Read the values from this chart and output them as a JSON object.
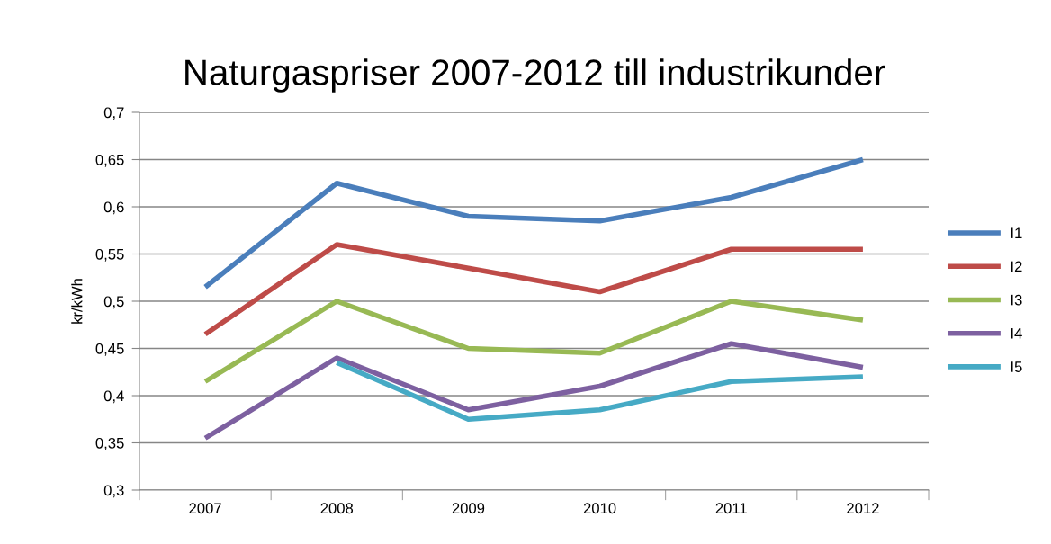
{
  "chart_data": {
    "type": "line",
    "title": "Naturgaspriser 2007-2012 till industrikunder",
    "ylabel": "kr/kWh",
    "categories": [
      "2007",
      "2008",
      "2009",
      "2010",
      "2011",
      "2012"
    ],
    "series": [
      {
        "name": "I1",
        "color": "#4a7ebb",
        "values": [
          0.515,
          0.625,
          0.59,
          0.585,
          0.61,
          0.65
        ]
      },
      {
        "name": "I2",
        "color": "#be4b48",
        "values": [
          0.465,
          0.56,
          0.535,
          0.51,
          0.555,
          0.555
        ]
      },
      {
        "name": "I3",
        "color": "#98b954",
        "values": [
          0.415,
          0.5,
          0.45,
          0.445,
          0.5,
          0.48
        ]
      },
      {
        "name": "I4",
        "color": "#7d60a0",
        "values": [
          0.355,
          0.44,
          0.385,
          0.41,
          0.455,
          0.43
        ]
      },
      {
        "name": "I5",
        "color": "#46aac5",
        "values": [
          null,
          0.435,
          0.375,
          0.385,
          0.415,
          0.42
        ]
      }
    ],
    "ylim": [
      0.3,
      0.7
    ],
    "yticks": [
      {
        "value": 0.3,
        "label": "0,3"
      },
      {
        "value": 0.35,
        "label": "0,35"
      },
      {
        "value": 0.4,
        "label": "0,4"
      },
      {
        "value": 0.45,
        "label": "0,45"
      },
      {
        "value": 0.5,
        "label": "0,5"
      },
      {
        "value": 0.55,
        "label": "0,55"
      },
      {
        "value": 0.6,
        "label": "0,6"
      },
      {
        "value": 0.65,
        "label": "0,65"
      },
      {
        "value": 0.7,
        "label": "0,7"
      }
    ],
    "grid": "y",
    "legend": "right",
    "marker": "none",
    "line_style": "solid"
  }
}
